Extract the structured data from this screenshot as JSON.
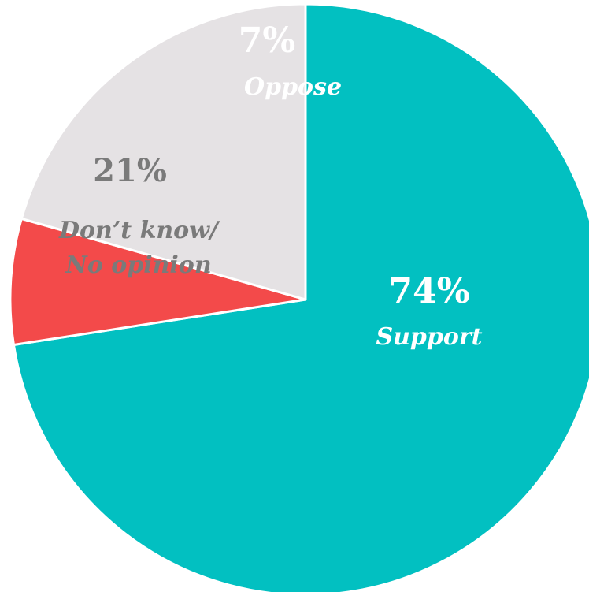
{
  "chart_data": {
    "type": "pie",
    "title": "",
    "slices": [
      {
        "label": "Support",
        "value": 74,
        "display": "74%",
        "color": "#02c0c1"
      },
      {
        "label": "Oppose",
        "value": 7,
        "display": "7%",
        "color": "#f34a4a"
      },
      {
        "label_lines": [
          "Don’t know/",
          "No opinion"
        ],
        "value": 21,
        "display": "21%",
        "color": "#e5e2e4"
      }
    ],
    "label_colors": {
      "support": "#ffffff",
      "oppose": "#ffffff",
      "dont_know": "#7a7a7a"
    },
    "start_angle_note": "first slice starts at 12 o'clock, clockwise"
  }
}
